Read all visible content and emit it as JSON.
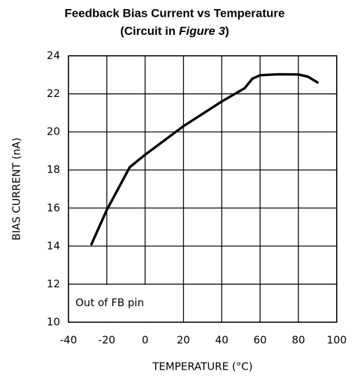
{
  "chart_data": {
    "type": "line",
    "title": "Feedback Bias Current vs Temperature",
    "subtitle": [
      "(Circuit in ",
      "Figure 3",
      ")"
    ],
    "x_label": "TEMPERATURE (°C)",
    "y_label": "BIAS CURRENT (nA)",
    "annotation": "Out of FB pin",
    "x": [
      -28,
      -20,
      -8,
      0,
      20,
      40,
      52,
      56,
      60,
      70,
      80,
      85,
      90
    ],
    "series": [
      {
        "color": "#000000",
        "values": [
          14.1,
          15.9,
          18.15,
          18.8,
          20.3,
          21.6,
          22.3,
          22.8,
          22.98,
          23.03,
          23.02,
          22.9,
          22.6
        ]
      }
    ],
    "xlim": [
      -40,
      100
    ],
    "xticks": [
      -40,
      -20,
      0,
      20,
      40,
      60,
      80,
      100
    ],
    "ylim": [
      10,
      24
    ],
    "yticks": [
      10,
      12,
      14,
      16,
      18,
      20,
      22,
      24
    ],
    "grid": true
  }
}
